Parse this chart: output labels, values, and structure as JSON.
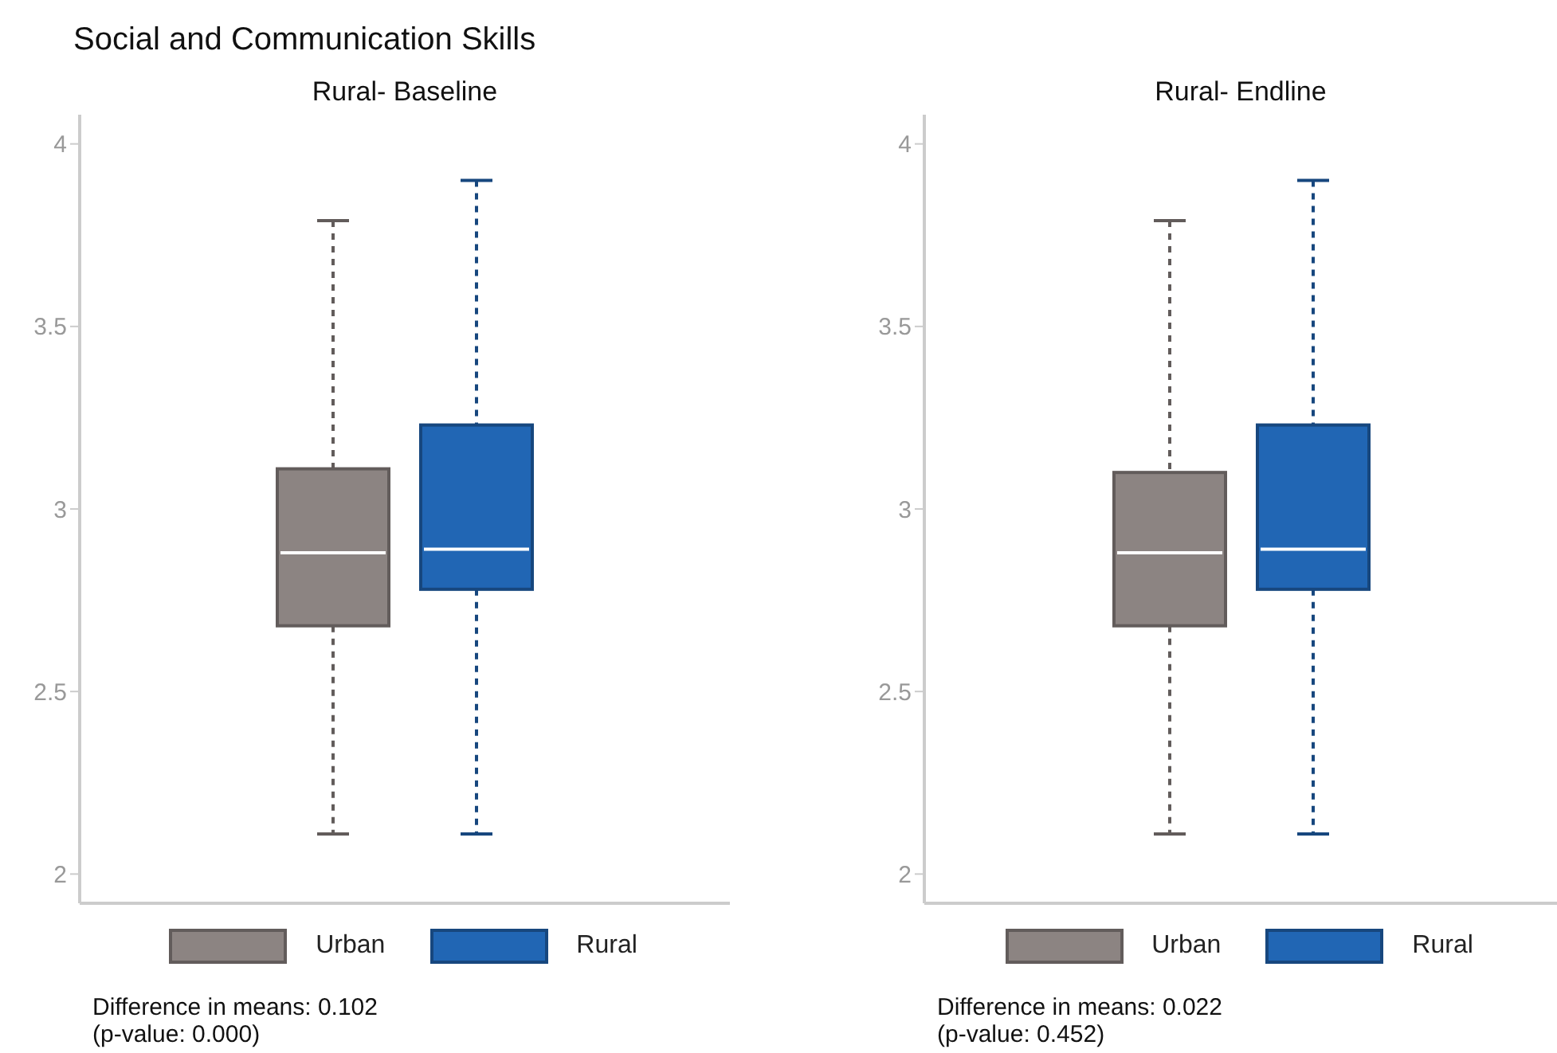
{
  "chart_data": [
    {
      "type": "box",
      "title": "Social and Communication Skills",
      "subtitle": "Rural- Baseline",
      "categories": [
        null
      ],
      "ylim": [
        1.92,
        4.08
      ],
      "yticks": [
        2,
        2.5,
        3,
        3.5,
        4
      ],
      "legend": "bottom",
      "line_style": "dashed",
      "grid": false,
      "series": [
        {
          "name": "Urban",
          "color": "#8c8482",
          "boxes": [
            {
              "low": 2.11,
              "q1": 2.68,
              "median": 2.88,
              "q3": 3.11,
              "high": 3.79
            }
          ]
        },
        {
          "name": "Rural",
          "color": "#2166b4",
          "boxes": [
            {
              "low": 2.11,
              "q1": 2.78,
              "median": 2.89,
              "q3": 3.23,
              "high": 3.9
            }
          ]
        }
      ],
      "annotations": [
        "Difference in means: 0.102",
        "(p-value: 0.000)"
      ]
    },
    {
      "type": "box",
      "title": "Rural- Endline",
      "categories": [
        null
      ],
      "ylim": [
        1.92,
        4.08
      ],
      "yticks": [
        2,
        2.5,
        3,
        3.5,
        4
      ],
      "legend": "bottom",
      "line_style": "dashed",
      "grid": false,
      "series": [
        {
          "name": "Urban",
          "color": "#8c8482",
          "boxes": [
            {
              "low": 2.11,
              "q1": 2.68,
              "median": 2.88,
              "q3": 3.1,
              "high": 3.79
            }
          ]
        },
        {
          "name": "Rural",
          "color": "#2166b4",
          "boxes": [
            {
              "low": 2.11,
              "q1": 2.78,
              "median": 2.89,
              "q3": 3.23,
              "high": 3.9
            }
          ]
        }
      ],
      "annotations": [
        "Difference in means: 0.022",
        "(p-value: 0.452)"
      ]
    }
  ]
}
